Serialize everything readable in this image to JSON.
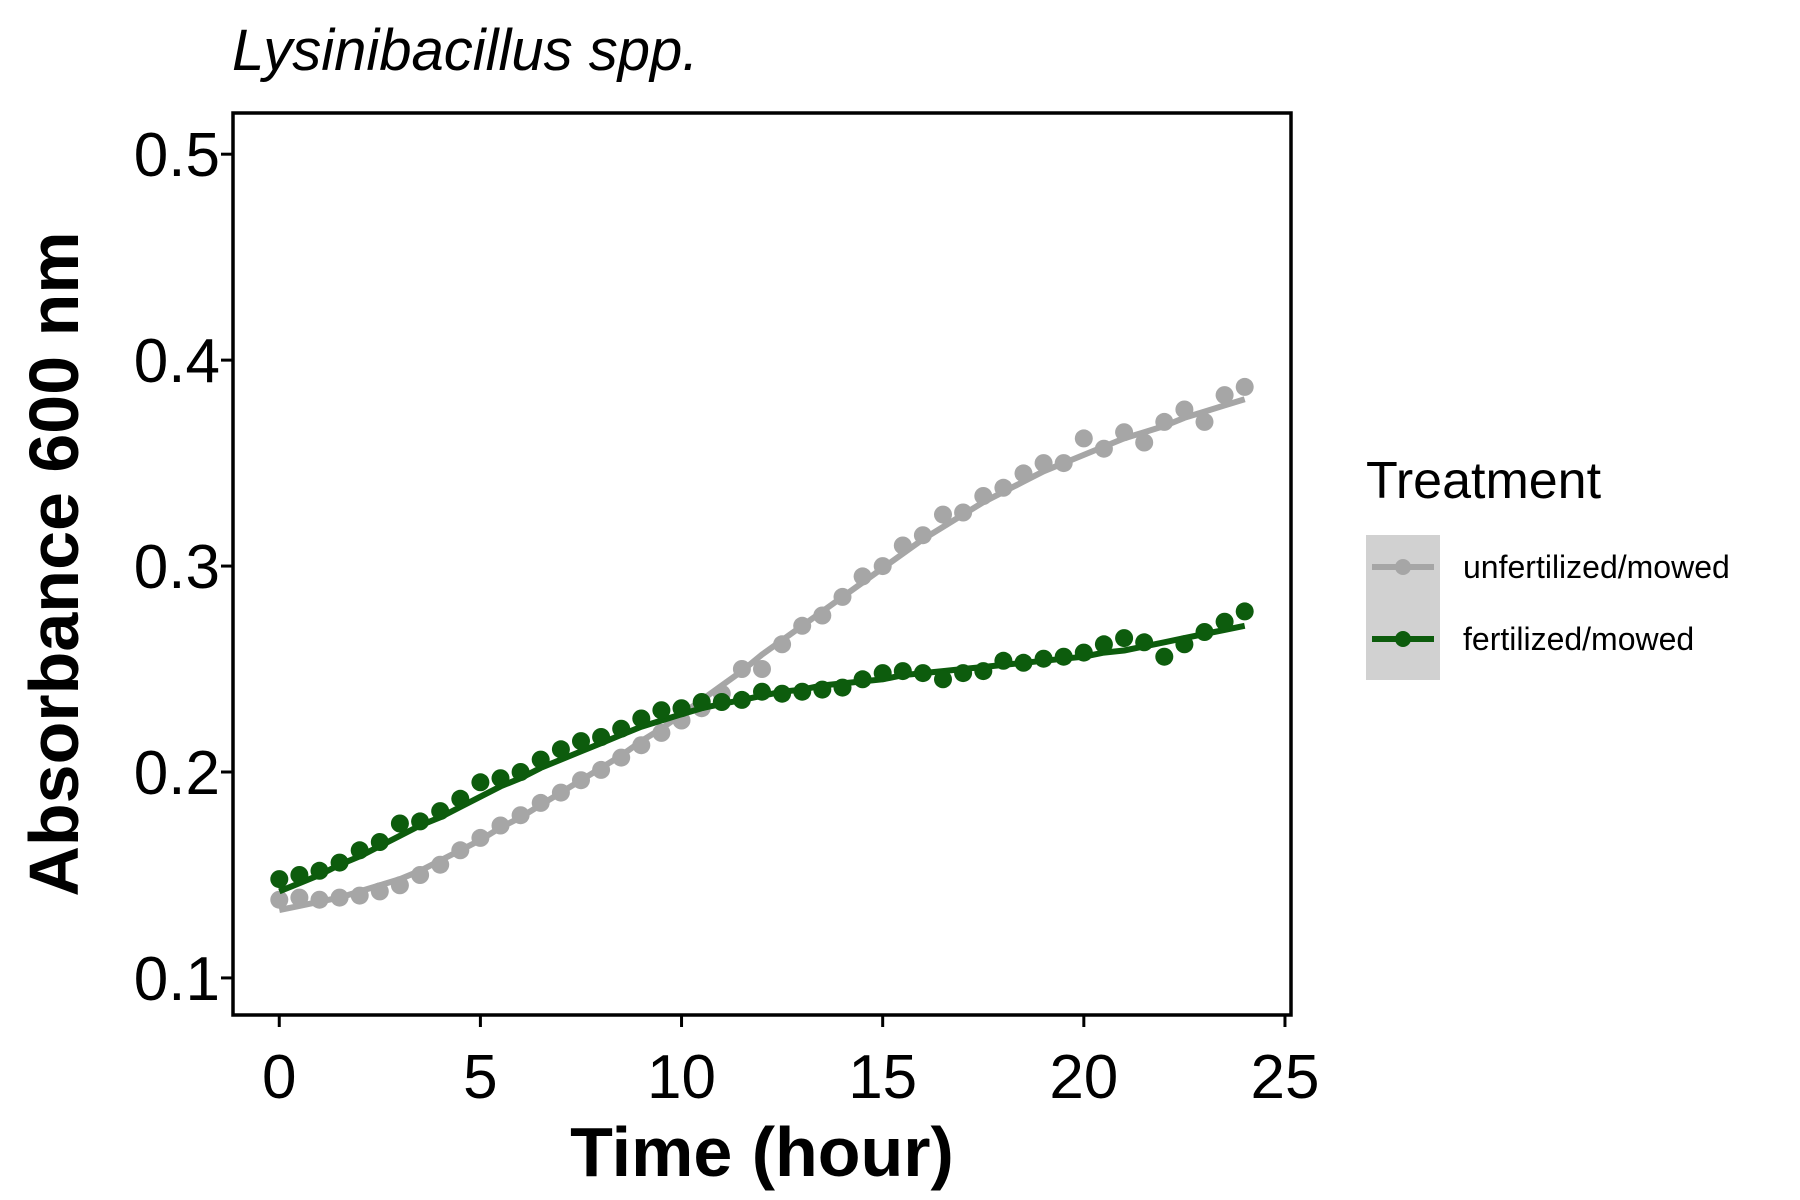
{
  "chart_data": {
    "type": "scatter",
    "title": "Lysinibacillus spp.",
    "xlabel": "Time (hour)",
    "ylabel": "Absorbance 600 nm",
    "xlim": [
      -1.15,
      25.15
    ],
    "ylim": [
      0.082,
      0.52
    ],
    "xticks": [
      0,
      5,
      10,
      15,
      20,
      25
    ],
    "xtick_labels": [
      "0",
      "5",
      "10",
      "15",
      "20",
      "25"
    ],
    "yticks": [
      0.1,
      0.2,
      0.3,
      0.4,
      0.5
    ],
    "ytick_labels": [
      "0.1",
      "0.2",
      "0.3",
      "0.4",
      "0.5"
    ],
    "grid": false,
    "legend": {
      "title": "Treatment",
      "position": "right",
      "background": "#d1d1d1"
    },
    "series": [
      {
        "name": "unfertilized/mowed",
        "color": "#a6a6a6",
        "fit": "smooth",
        "x": [
          0.0,
          0.5,
          1.0,
          1.5,
          2.0,
          2.5,
          3.0,
          3.5,
          4.0,
          4.5,
          5.0,
          5.5,
          6.0,
          6.5,
          7.0,
          7.5,
          8.0,
          8.5,
          9.0,
          9.5,
          10.0,
          10.5,
          11.0,
          11.5,
          12.0,
          12.5,
          13.0,
          13.5,
          14.0,
          14.5,
          15.0,
          15.5,
          16.0,
          16.5,
          17.0,
          17.5,
          18.0,
          18.5,
          19.0,
          19.5,
          20.0,
          20.5,
          21.0,
          21.5,
          22.0,
          22.5,
          23.0,
          23.5,
          24.0
        ],
        "y": [
          0.138,
          0.139,
          0.138,
          0.139,
          0.14,
          0.142,
          0.145,
          0.15,
          0.155,
          0.162,
          0.168,
          0.174,
          0.179,
          0.185,
          0.19,
          0.196,
          0.201,
          0.207,
          0.213,
          0.219,
          0.225,
          0.231,
          0.238,
          0.25,
          0.25,
          0.262,
          0.271,
          0.276,
          0.285,
          0.295,
          0.3,
          0.31,
          0.315,
          0.325,
          0.326,
          0.334,
          0.338,
          0.345,
          0.35,
          0.35,
          0.362,
          0.357,
          0.365,
          0.36,
          0.37,
          0.376,
          0.37,
          0.383,
          0.387
        ],
        "fit_y": [
          0.133,
          0.135,
          0.137,
          0.139,
          0.142,
          0.145,
          0.148,
          0.152,
          0.157,
          0.162,
          0.167,
          0.173,
          0.178,
          0.184,
          0.19,
          0.196,
          0.202,
          0.208,
          0.215,
          0.221,
          0.228,
          0.235,
          0.242,
          0.249,
          0.257,
          0.264,
          0.271,
          0.278,
          0.285,
          0.292,
          0.299,
          0.306,
          0.313,
          0.319,
          0.325,
          0.331,
          0.336,
          0.341,
          0.346,
          0.35,
          0.354,
          0.358,
          0.362,
          0.365,
          0.368,
          0.372,
          0.375,
          0.378,
          0.381
        ]
      },
      {
        "name": "fertilized/mowed",
        "color": "#0d5c0d",
        "fit": "smooth",
        "x": [
          0.0,
          0.5,
          1.0,
          1.5,
          2.0,
          2.5,
          3.0,
          3.5,
          4.0,
          4.5,
          5.0,
          5.5,
          6.0,
          6.5,
          7.0,
          7.5,
          8.0,
          8.5,
          9.0,
          9.5,
          10.0,
          10.5,
          11.0,
          11.5,
          12.0,
          12.5,
          13.0,
          13.5,
          14.0,
          14.5,
          15.0,
          15.5,
          16.0,
          16.5,
          17.0,
          17.5,
          18.0,
          18.5,
          19.0,
          19.5,
          20.0,
          20.5,
          21.0,
          21.5,
          22.0,
          22.5,
          23.0,
          23.5,
          24.0
        ],
        "y": [
          0.148,
          0.15,
          0.152,
          0.156,
          0.162,
          0.166,
          0.175,
          0.176,
          0.181,
          0.187,
          0.195,
          0.197,
          0.2,
          0.206,
          0.211,
          0.215,
          0.217,
          0.221,
          0.226,
          0.23,
          0.231,
          0.234,
          0.234,
          0.235,
          0.239,
          0.238,
          0.239,
          0.24,
          0.241,
          0.245,
          0.248,
          0.249,
          0.248,
          0.245,
          0.248,
          0.249,
          0.254,
          0.253,
          0.255,
          0.256,
          0.258,
          0.262,
          0.265,
          0.263,
          0.256,
          0.262,
          0.268,
          0.273,
          0.278
        ],
        "fit_y": [
          0.142,
          0.146,
          0.15,
          0.155,
          0.159,
          0.164,
          0.169,
          0.174,
          0.178,
          0.183,
          0.188,
          0.193,
          0.197,
          0.202,
          0.206,
          0.21,
          0.214,
          0.218,
          0.222,
          0.225,
          0.228,
          0.231,
          0.233,
          0.235,
          0.237,
          0.239,
          0.24,
          0.242,
          0.243,
          0.244,
          0.245,
          0.247,
          0.248,
          0.249,
          0.25,
          0.251,
          0.252,
          0.253,
          0.254,
          0.255,
          0.256,
          0.258,
          0.259,
          0.261,
          0.263,
          0.265,
          0.267,
          0.269,
          0.271
        ]
      }
    ]
  }
}
